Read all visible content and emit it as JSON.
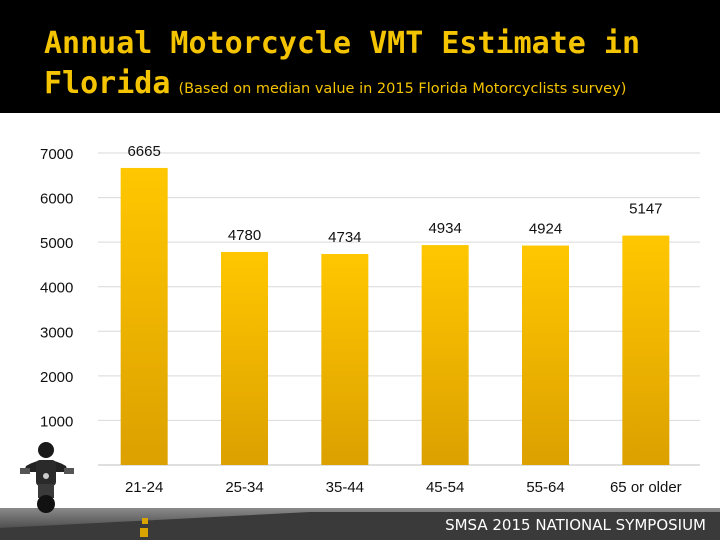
{
  "header": {
    "title_line1": "Annual Motorcycle VMT Estimate in",
    "title_line2_main": "Florida",
    "title_line2_sub": "(Based on median value in 2015 Florida Motorcyclists survey)"
  },
  "footer": {
    "text": "SMSA 2015 NATIONAL SYMPOSIUM"
  },
  "colors": {
    "title": "#f5c400",
    "bar_top": "#ffc400",
    "bar_bottom": "#e0a000",
    "header_bg": "#000000"
  },
  "chart_data": {
    "type": "bar",
    "title": "Annual Motorcycle VMT Estimate in Florida",
    "subtitle": "(Based on median value in 2015 Florida Motorcyclists survey)",
    "categories": [
      "21-24",
      "25-34",
      "35-44",
      "45-54",
      "55-64",
      "65 or older"
    ],
    "values": [
      6665,
      4780,
      4734,
      4934,
      4924,
      5147
    ],
    "value_labels": [
      "6665",
      "4780",
      "4734",
      "4934",
      "4924",
      "5147"
    ],
    "yticks": [
      "1000",
      "2000",
      "3000",
      "4000",
      "5000",
      "6000",
      "7000"
    ],
    "ytick_values": [
      1000,
      2000,
      3000,
      4000,
      5000,
      6000,
      7000
    ],
    "ylim": [
      0,
      7000
    ],
    "grid": true,
    "xlabel": "",
    "ylabel": ""
  }
}
